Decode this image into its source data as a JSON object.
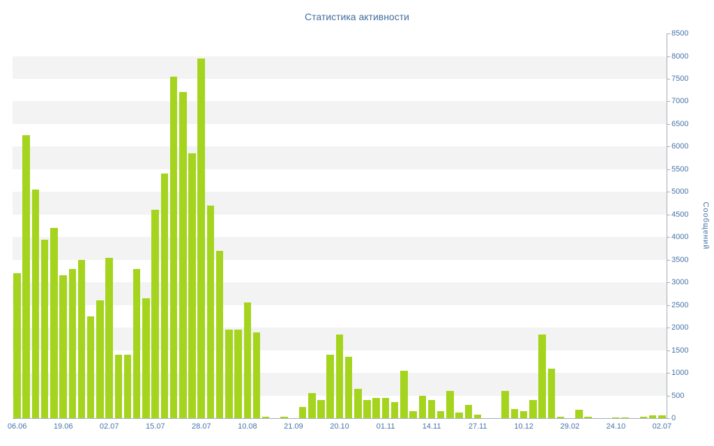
{
  "title": "Статистика активности",
  "chart_data": {
    "type": "bar",
    "title": "Статистика активности",
    "xlabel": "",
    "ylabel": "Сообщений",
    "ylim": [
      0,
      8500
    ],
    "y_tick_step": 500,
    "y_tick_labels": [
      "0",
      "500",
      "1000",
      "1500",
      "2000",
      "2500",
      "3000",
      "3500",
      "4000",
      "4500",
      "5000",
      "5500",
      "6000",
      "6500",
      "7000",
      "7500",
      "8000",
      "8500"
    ],
    "x_tick_labels": [
      "06.06",
      "19.06",
      "02.07",
      "15.07",
      "28.07",
      "10.08",
      "21.09",
      "20.10",
      "01.11",
      "14.11",
      "27.11",
      "10.12",
      "29.02",
      "24.10",
      "02.07"
    ],
    "x_tick_slots": [
      0,
      5,
      10,
      15,
      20,
      25,
      30,
      35,
      40,
      45,
      50,
      55,
      60,
      65,
      70
    ],
    "values": [
      3200,
      6250,
      5050,
      3950,
      4200,
      3150,
      3300,
      3500,
      2250,
      2600,
      3550,
      1400,
      1400,
      3300,
      2650,
      4600,
      5400,
      7550,
      7200,
      5850,
      7950,
      4700,
      3700,
      1950,
      1950,
      2550,
      1900,
      30,
      0,
      25,
      0,
      250,
      550,
      400,
      1400,
      1850,
      1350,
      650,
      400,
      450,
      450,
      350,
      1050,
      150,
      500,
      400,
      150,
      600,
      120,
      300,
      80,
      0,
      0,
      600,
      200,
      150,
      400,
      1850,
      1100,
      30,
      0,
      180,
      25,
      0,
      0,
      20,
      15,
      0,
      30,
      60,
      70
    ],
    "legend": "none",
    "grid": "alternating-horizontal-bands",
    "y_axis_position": "right"
  },
  "colors": {
    "bar": "#a5d41f",
    "band": "#f3f3f3",
    "background": "#ffffff",
    "title_text": "#3f6e9e",
    "axis_text": "#4673a8",
    "axis_line": "#a3adb5"
  }
}
